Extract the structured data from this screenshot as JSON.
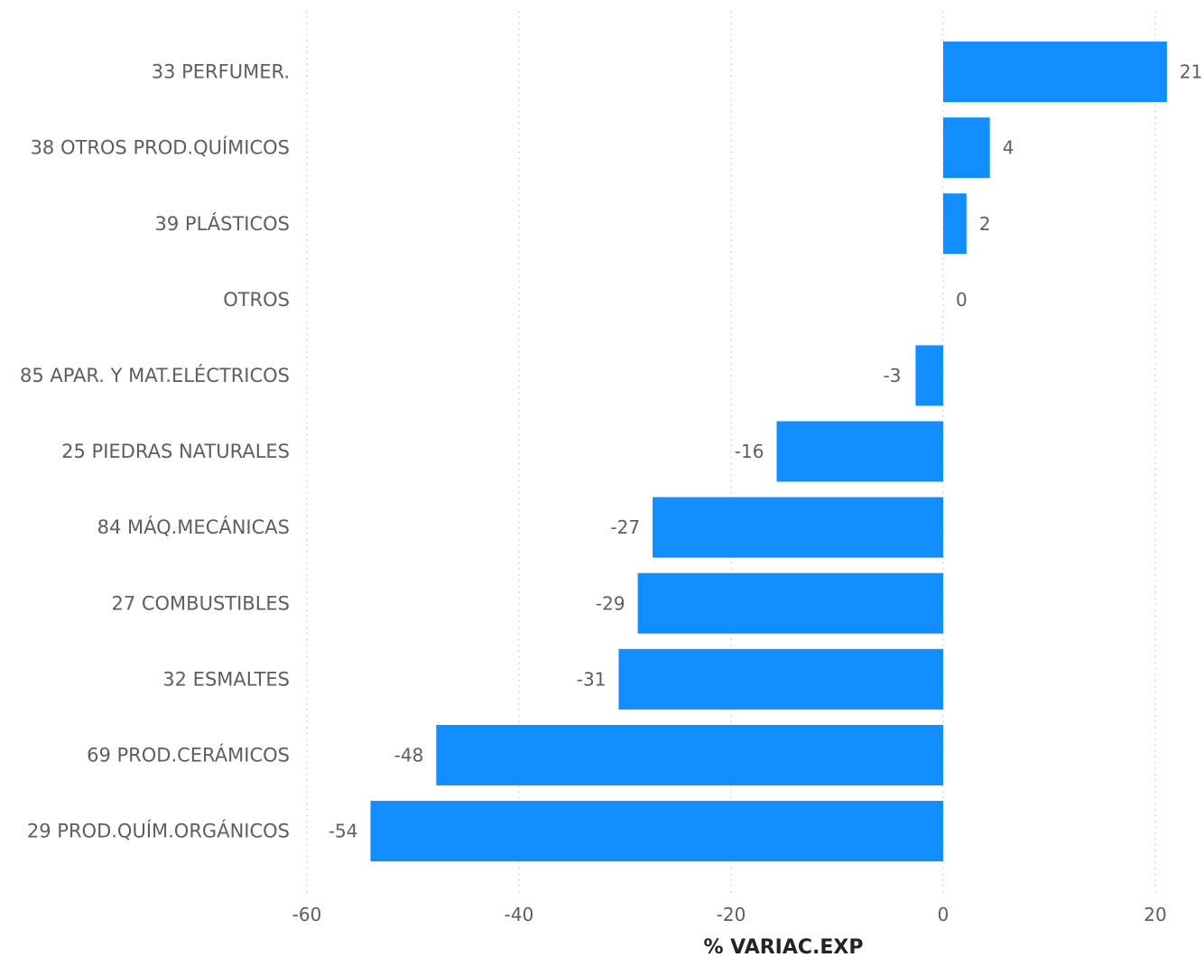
{
  "chart_data": {
    "type": "bar",
    "orientation": "horizontal",
    "categories": [
      "33 PERFUMER.",
      "38 OTROS PROD.QUÍMICOS",
      "39 PLÁSTICOS",
      "OTROS",
      "85 APAR. Y MAT.ELÉCTRICOS",
      "25 PIEDRAS NATURALES",
      "84 MÁQ.MECÁNICAS",
      "27 COMBUSTIBLES",
      "32 ESMALTES",
      "69 PROD.CERÁMICOS",
      "29 PROD.QUÍM.ORGÁNICOS"
    ],
    "values": [
      21.1,
      4.4,
      2.2,
      0,
      -2.6,
      -15.7,
      -27.4,
      -28.8,
      -30.6,
      -47.8,
      -54.0
    ],
    "labels": [
      "21",
      "4",
      "2",
      "0",
      "-3",
      "-16",
      "-27",
      "-29",
      "-31",
      "-48",
      "-54"
    ],
    "xlabel": "% VARIAC.EXP",
    "xlim": [
      -60,
      20
    ],
    "xticks": [
      -60,
      -40,
      -20,
      0,
      20
    ],
    "xtick_labels": [
      "-60",
      "-40",
      "-20",
      "0",
      "20"
    ],
    "grid": true,
    "bar_color": "#118dff"
  }
}
